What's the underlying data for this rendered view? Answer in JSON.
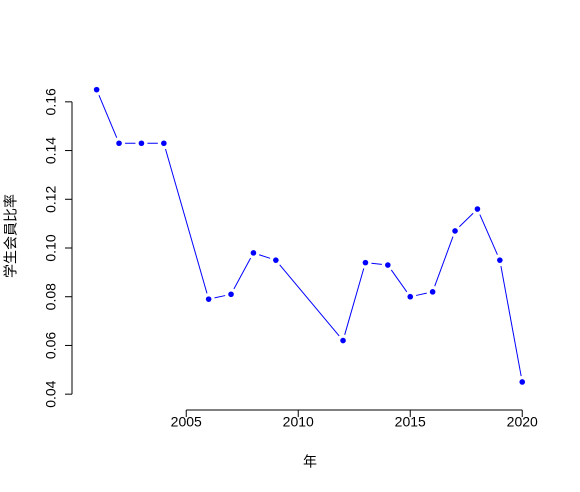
{
  "chart_data": {
    "type": "line",
    "x_label": "年",
    "y_label": "学生会員比率",
    "series": [
      {
        "color": "#0000ff",
        "x": [
          2001,
          2002,
          2003,
          2004,
          2006,
          2007,
          2008,
          2009,
          2012,
          2013,
          2014,
          2015,
          2016,
          2017,
          2018,
          2019,
          2020
        ],
        "values": [
          0.165,
          0.143,
          0.143,
          0.143,
          0.079,
          0.081,
          0.098,
          0.095,
          0.062,
          0.094,
          0.093,
          0.08,
          0.082,
          0.107,
          0.116,
          0.095,
          0.045
        ]
      }
    ],
    "xlim": [
      1999.9,
      2020.9
    ],
    "ylim": [
      0.0335,
      0.1665
    ],
    "xticks": [
      2005,
      2010,
      2015,
      2020
    ],
    "yticks": [
      0.04,
      0.06,
      0.08,
      {
        "value": 0.1,
        "label": "0.10"
      },
      0.12,
      0.14,
      0.16
    ]
  }
}
